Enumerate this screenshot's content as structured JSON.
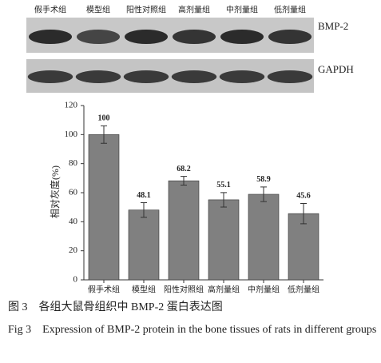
{
  "blot": {
    "lanes": [
      "假手术组",
      "模型组",
      "阳性对照组",
      "高剂量组",
      "中剂量组",
      "低剂量组"
    ],
    "bands": [
      "BMP-2",
      "GAPDH"
    ]
  },
  "chart_data": {
    "type": "bar",
    "y_label": "相对灰度(%)",
    "categories": [
      "假手术组",
      "模型组",
      "阳性对照组",
      "高剂量组",
      "中剂量组",
      "低剂量组"
    ],
    "values": [
      100,
      48.1,
      68.2,
      55.1,
      58.9,
      45.6
    ],
    "errors": [
      6,
      5,
      3,
      5,
      5,
      7
    ],
    "color": "#808080",
    "ylim": [
      0,
      120
    ],
    "yticks": [
      0,
      20,
      40,
      60,
      80,
      100,
      120
    ]
  },
  "caption": {
    "cn": "图 3　各组大鼠骨组织中 BMP-2 蛋白表达图",
    "en": "Fig 3　Expression of BMP-2 protein in the bone tissues of rats in different groups"
  }
}
